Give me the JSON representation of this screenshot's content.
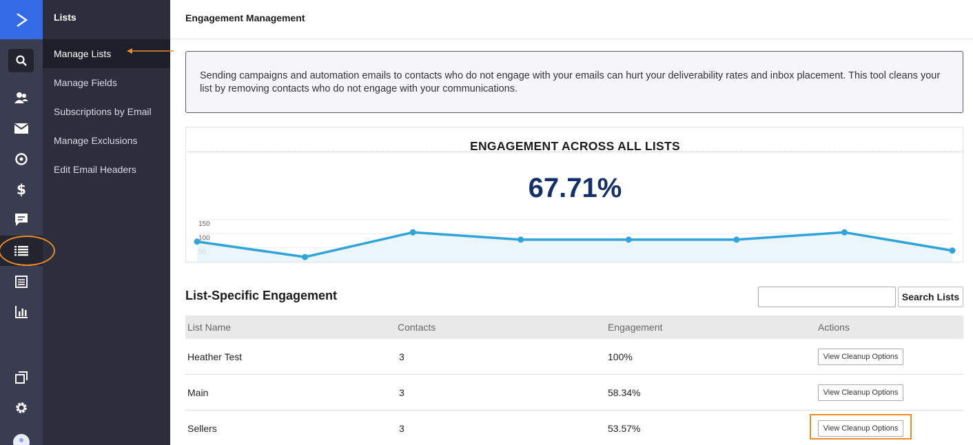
{
  "rail": {
    "icons": [
      "logo-icon",
      "search-icon",
      "contacts-icon",
      "mail-icon",
      "automation-icon",
      "dollar-icon",
      "conversations-icon",
      "lists-icon",
      "forms-icon",
      "reports-icon",
      "pages-icon",
      "gear-icon"
    ]
  },
  "subnav": {
    "title": "Lists",
    "items": [
      {
        "label": "Manage Lists",
        "active": true
      },
      {
        "label": "Manage Fields"
      },
      {
        "label": "Subscriptions by Email"
      },
      {
        "label": "Manage Exclusions"
      },
      {
        "label": "Edit Email Headers"
      }
    ]
  },
  "header": {
    "title": "Engagement Management"
  },
  "info": {
    "text": "Sending campaigns and automation emails to contacts who do not engage with your emails can hurt your deliverability rates and inbox placement. This tool cleans your list by removing contacts who do not engage with your communications."
  },
  "chart_data": {
    "type": "area",
    "title": "ENGAGEMENT ACROSS ALL LISTS",
    "value_label": "67.71%",
    "yticks": [
      "150",
      "100",
      "50"
    ],
    "ylim": [
      0,
      150
    ],
    "values": [
      72,
      17,
      105,
      79,
      79,
      79,
      105,
      40
    ],
    "line_color": "#2fa4d9",
    "fill_color": "#e6f4fb"
  },
  "section": {
    "title": "List-Specific Engagement",
    "search_placeholder": "",
    "search_button": "Search Lists"
  },
  "table": {
    "headers": [
      "List Name",
      "Contacts",
      "Engagement",
      "Actions"
    ],
    "rows": [
      {
        "name": "Heather Test",
        "contacts": "3",
        "engagement": "100%",
        "action": "View Cleanup Options"
      },
      {
        "name": "Main",
        "contacts": "3",
        "engagement": "58.34%",
        "action": "View Cleanup Options"
      },
      {
        "name": "Sellers",
        "contacts": "3",
        "engagement": "53.57%",
        "action": "View Cleanup Options"
      }
    ]
  },
  "colors": {
    "brand": "#356ae6",
    "rail": "#3a3d4f",
    "subnav": "#2c2e3d",
    "highlight": "#f08a24",
    "metric": "#13306a"
  }
}
